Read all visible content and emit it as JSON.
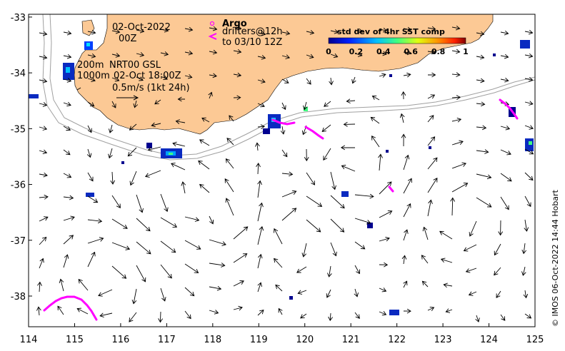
{
  "chart_data": {
    "type": "map",
    "x_ticks": [
      "114",
      "115",
      "116",
      "117",
      "118",
      "119",
      "120",
      "121",
      "122",
      "123",
      "124",
      "125"
    ],
    "y_ticks": [
      "-33",
      "-34",
      "-35",
      "-36",
      "-37",
      "-38"
    ],
    "xlim": [
      114,
      125
    ],
    "ylim": [
      -38.55,
      -32.95
    ],
    "date_label": "02-Oct-2022",
    "time_label": "00Z",
    "legend_argo": "Argo",
    "legend_drifters": "drifters@12h",
    "legend_to": "to 03/10 12Z",
    "depth_200": "200m",
    "depth_1000": "1000m",
    "product": "NRT00 GSL",
    "product_time": "02-Oct 18:00Z",
    "scale_label": "0.5m/s (1kt 24h)",
    "colorbar_title": "std dev of 4hr SST comp",
    "colorbar_ticks": [
      "0",
      "0.2",
      "0.4",
      "0.6",
      "0.8",
      "1"
    ],
    "colors": {
      "land": "#fcc995",
      "drifter": "#ff00ff",
      "contour": "#a0a0a0"
    },
    "credit": "© IMOS 06-Oct-2022 14:44 Hobart"
  }
}
